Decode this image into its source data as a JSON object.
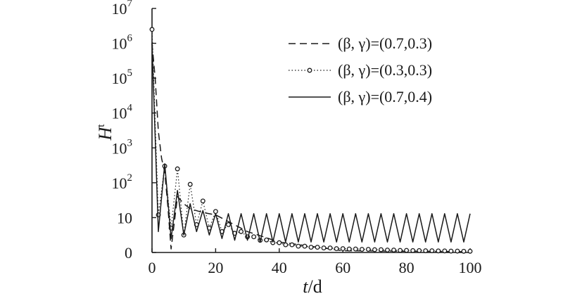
{
  "chart_data": {
    "type": "line",
    "xlabel": {
      "var": "t",
      "unit": "/d"
    },
    "ylabel": {
      "var": "H",
      "sup": "t"
    },
    "xlim": [
      0,
      100
    ],
    "x_ticks": [
      "0",
      "20",
      "40",
      "60",
      "80",
      "100"
    ],
    "y_ticks": [
      {
        "base": "0",
        "exp": ""
      },
      {
        "base": "10",
        "exp": ""
      },
      {
        "base": "10",
        "exp": "2"
      },
      {
        "base": "10",
        "exp": "3"
      },
      {
        "base": "10",
        "exp": "4"
      },
      {
        "base": "10",
        "exp": "5"
      },
      {
        "base": "10",
        "exp": "6"
      },
      {
        "base": "10",
        "exp": "7"
      }
    ],
    "grid": false,
    "legend_position": "top-right",
    "series": [
      {
        "name": "(β, γ)=(0.7,0.3)",
        "style": "dashed",
        "x": [
          0,
          1,
          2,
          3,
          4,
          5,
          6,
          8,
          10,
          12,
          16,
          20,
          30,
          40,
          60,
          100
        ],
        "y": [
          1000000,
          100000,
          3000,
          500,
          200,
          20,
          1,
          40,
          25,
          18,
          14,
          12,
          6,
          3,
          0.5,
          0.2
        ]
      },
      {
        "name": "(β, γ)=(0.3,0.3)",
        "style": "dotted-circle",
        "x": [
          0,
          2,
          4,
          6,
          8,
          10,
          12,
          14,
          16,
          18,
          20,
          22,
          24,
          26,
          28,
          30,
          32,
          34,
          36,
          38,
          40,
          42,
          44,
          46,
          48,
          50,
          52,
          54,
          56,
          58,
          60,
          62,
          64,
          66,
          68,
          70,
          72,
          74,
          76,
          78,
          80,
          82,
          84,
          86,
          88,
          90,
          92,
          94,
          96,
          98,
          100
        ],
        "y": [
          2500000,
          12,
          300,
          7,
          250,
          5,
          90,
          8,
          30,
          7,
          15,
          6,
          8,
          5.5,
          6,
          4.5,
          4.5,
          3.5,
          3.6,
          2.8,
          2.8,
          2.2,
          2.2,
          1.8,
          1.8,
          1.5,
          1.5,
          1.3,
          1.3,
          1.1,
          1.1,
          1.0,
          1.0,
          0.9,
          0.9,
          0.8,
          0.8,
          0.7,
          0.7,
          0.6,
          0.6,
          0.55,
          0.55,
          0.5,
          0.5,
          0.45,
          0.45,
          0.4,
          0.4,
          0.35,
          0.35
        ]
      },
      {
        "name": "(β, γ)=(0.7,0.4)",
        "style": "solid",
        "x": [
          0,
          2,
          4,
          6,
          8,
          10,
          12,
          14,
          16,
          18,
          20,
          22,
          24,
          26,
          28,
          30,
          32,
          34,
          36,
          38,
          40,
          42,
          44,
          46,
          48,
          50,
          52,
          54,
          56,
          58,
          60,
          62,
          64,
          66,
          68,
          70,
          72,
          74,
          76,
          78,
          80,
          82,
          84,
          86,
          88,
          90,
          92,
          94,
          96,
          98,
          100
        ],
        "y": [
          1000000,
          6,
          350,
          4,
          60,
          5,
          25,
          6,
          16,
          5,
          13,
          4,
          13,
          3.5,
          13,
          3.5,
          13,
          3,
          13,
          3,
          13,
          3,
          13,
          3,
          13,
          3,
          13,
          3,
          13,
          3,
          13,
          3,
          13,
          3,
          13,
          3,
          13,
          3,
          13,
          3,
          13,
          3,
          13,
          3,
          13,
          3,
          13,
          3,
          13,
          3,
          13
        ]
      }
    ]
  }
}
